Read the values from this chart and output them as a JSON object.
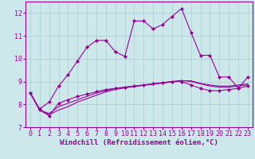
{
  "xlabel": "Windchill (Refroidissement éolien,°C)",
  "bg_color": "#cce8ea",
  "grid_color": "#aacccc",
  "line_color": "#990099",
  "xlim": [
    -0.5,
    23.5
  ],
  "ylim": [
    7,
    12.5
  ],
  "yticks": [
    7,
    8,
    9,
    10,
    11,
    12
  ],
  "xticks": [
    0,
    1,
    2,
    3,
    4,
    5,
    6,
    7,
    8,
    9,
    10,
    11,
    12,
    13,
    14,
    15,
    16,
    17,
    18,
    19,
    20,
    21,
    22,
    23
  ],
  "series1_x": [
    0,
    1,
    2,
    3,
    4,
    5,
    6,
    7,
    8,
    9,
    10,
    11,
    12,
    13,
    14,
    15,
    16,
    17,
    18,
    19,
    20,
    21,
    22,
    23
  ],
  "series1_y": [
    8.5,
    7.8,
    8.1,
    8.8,
    9.3,
    9.9,
    10.5,
    10.8,
    10.8,
    10.3,
    10.1,
    11.65,
    11.65,
    11.3,
    11.5,
    11.85,
    12.2,
    11.15,
    10.15,
    10.15,
    9.2,
    9.2,
    8.7,
    9.2
  ],
  "series2_x": [
    0,
    1,
    2,
    3,
    4,
    5,
    6,
    7,
    8,
    9,
    10,
    11,
    12,
    13,
    14,
    15,
    16,
    17,
    18,
    19,
    20,
    21,
    22,
    23
  ],
  "series2_y": [
    8.5,
    7.75,
    7.5,
    8.05,
    8.2,
    8.35,
    8.45,
    8.55,
    8.65,
    8.7,
    8.75,
    8.8,
    8.85,
    8.9,
    8.95,
    9.0,
    9.0,
    8.85,
    8.7,
    8.6,
    8.6,
    8.65,
    8.7,
    8.8
  ],
  "series3_x": [
    0,
    1,
    2,
    3,
    4,
    5,
    6,
    7,
    8,
    9,
    10,
    11,
    12,
    13,
    14,
    15,
    16,
    17,
    18,
    19,
    20,
    21,
    22,
    23
  ],
  "series3_y": [
    8.5,
    7.75,
    7.6,
    7.9,
    8.05,
    8.2,
    8.35,
    8.5,
    8.6,
    8.7,
    8.75,
    8.8,
    8.85,
    8.9,
    8.95,
    9.0,
    9.05,
    9.0,
    8.9,
    8.8,
    8.75,
    8.75,
    8.8,
    8.85
  ],
  "series4_x": [
    0,
    1,
    2,
    3,
    4,
    5,
    6,
    7,
    8,
    9,
    10,
    11,
    12,
    13,
    14,
    15,
    16,
    17,
    18,
    19,
    20,
    21,
    22,
    23
  ],
  "series4_y": [
    8.5,
    7.75,
    7.55,
    7.75,
    7.9,
    8.1,
    8.25,
    8.4,
    8.55,
    8.65,
    8.72,
    8.78,
    8.83,
    8.88,
    8.93,
    8.98,
    9.03,
    9.03,
    8.92,
    8.85,
    8.8,
    8.8,
    8.85,
    8.9
  ],
  "tick_fontsize": 6.0,
  "xlabel_fontsize": 6.5,
  "lw": 0.8,
  "marker_size": 2.2
}
